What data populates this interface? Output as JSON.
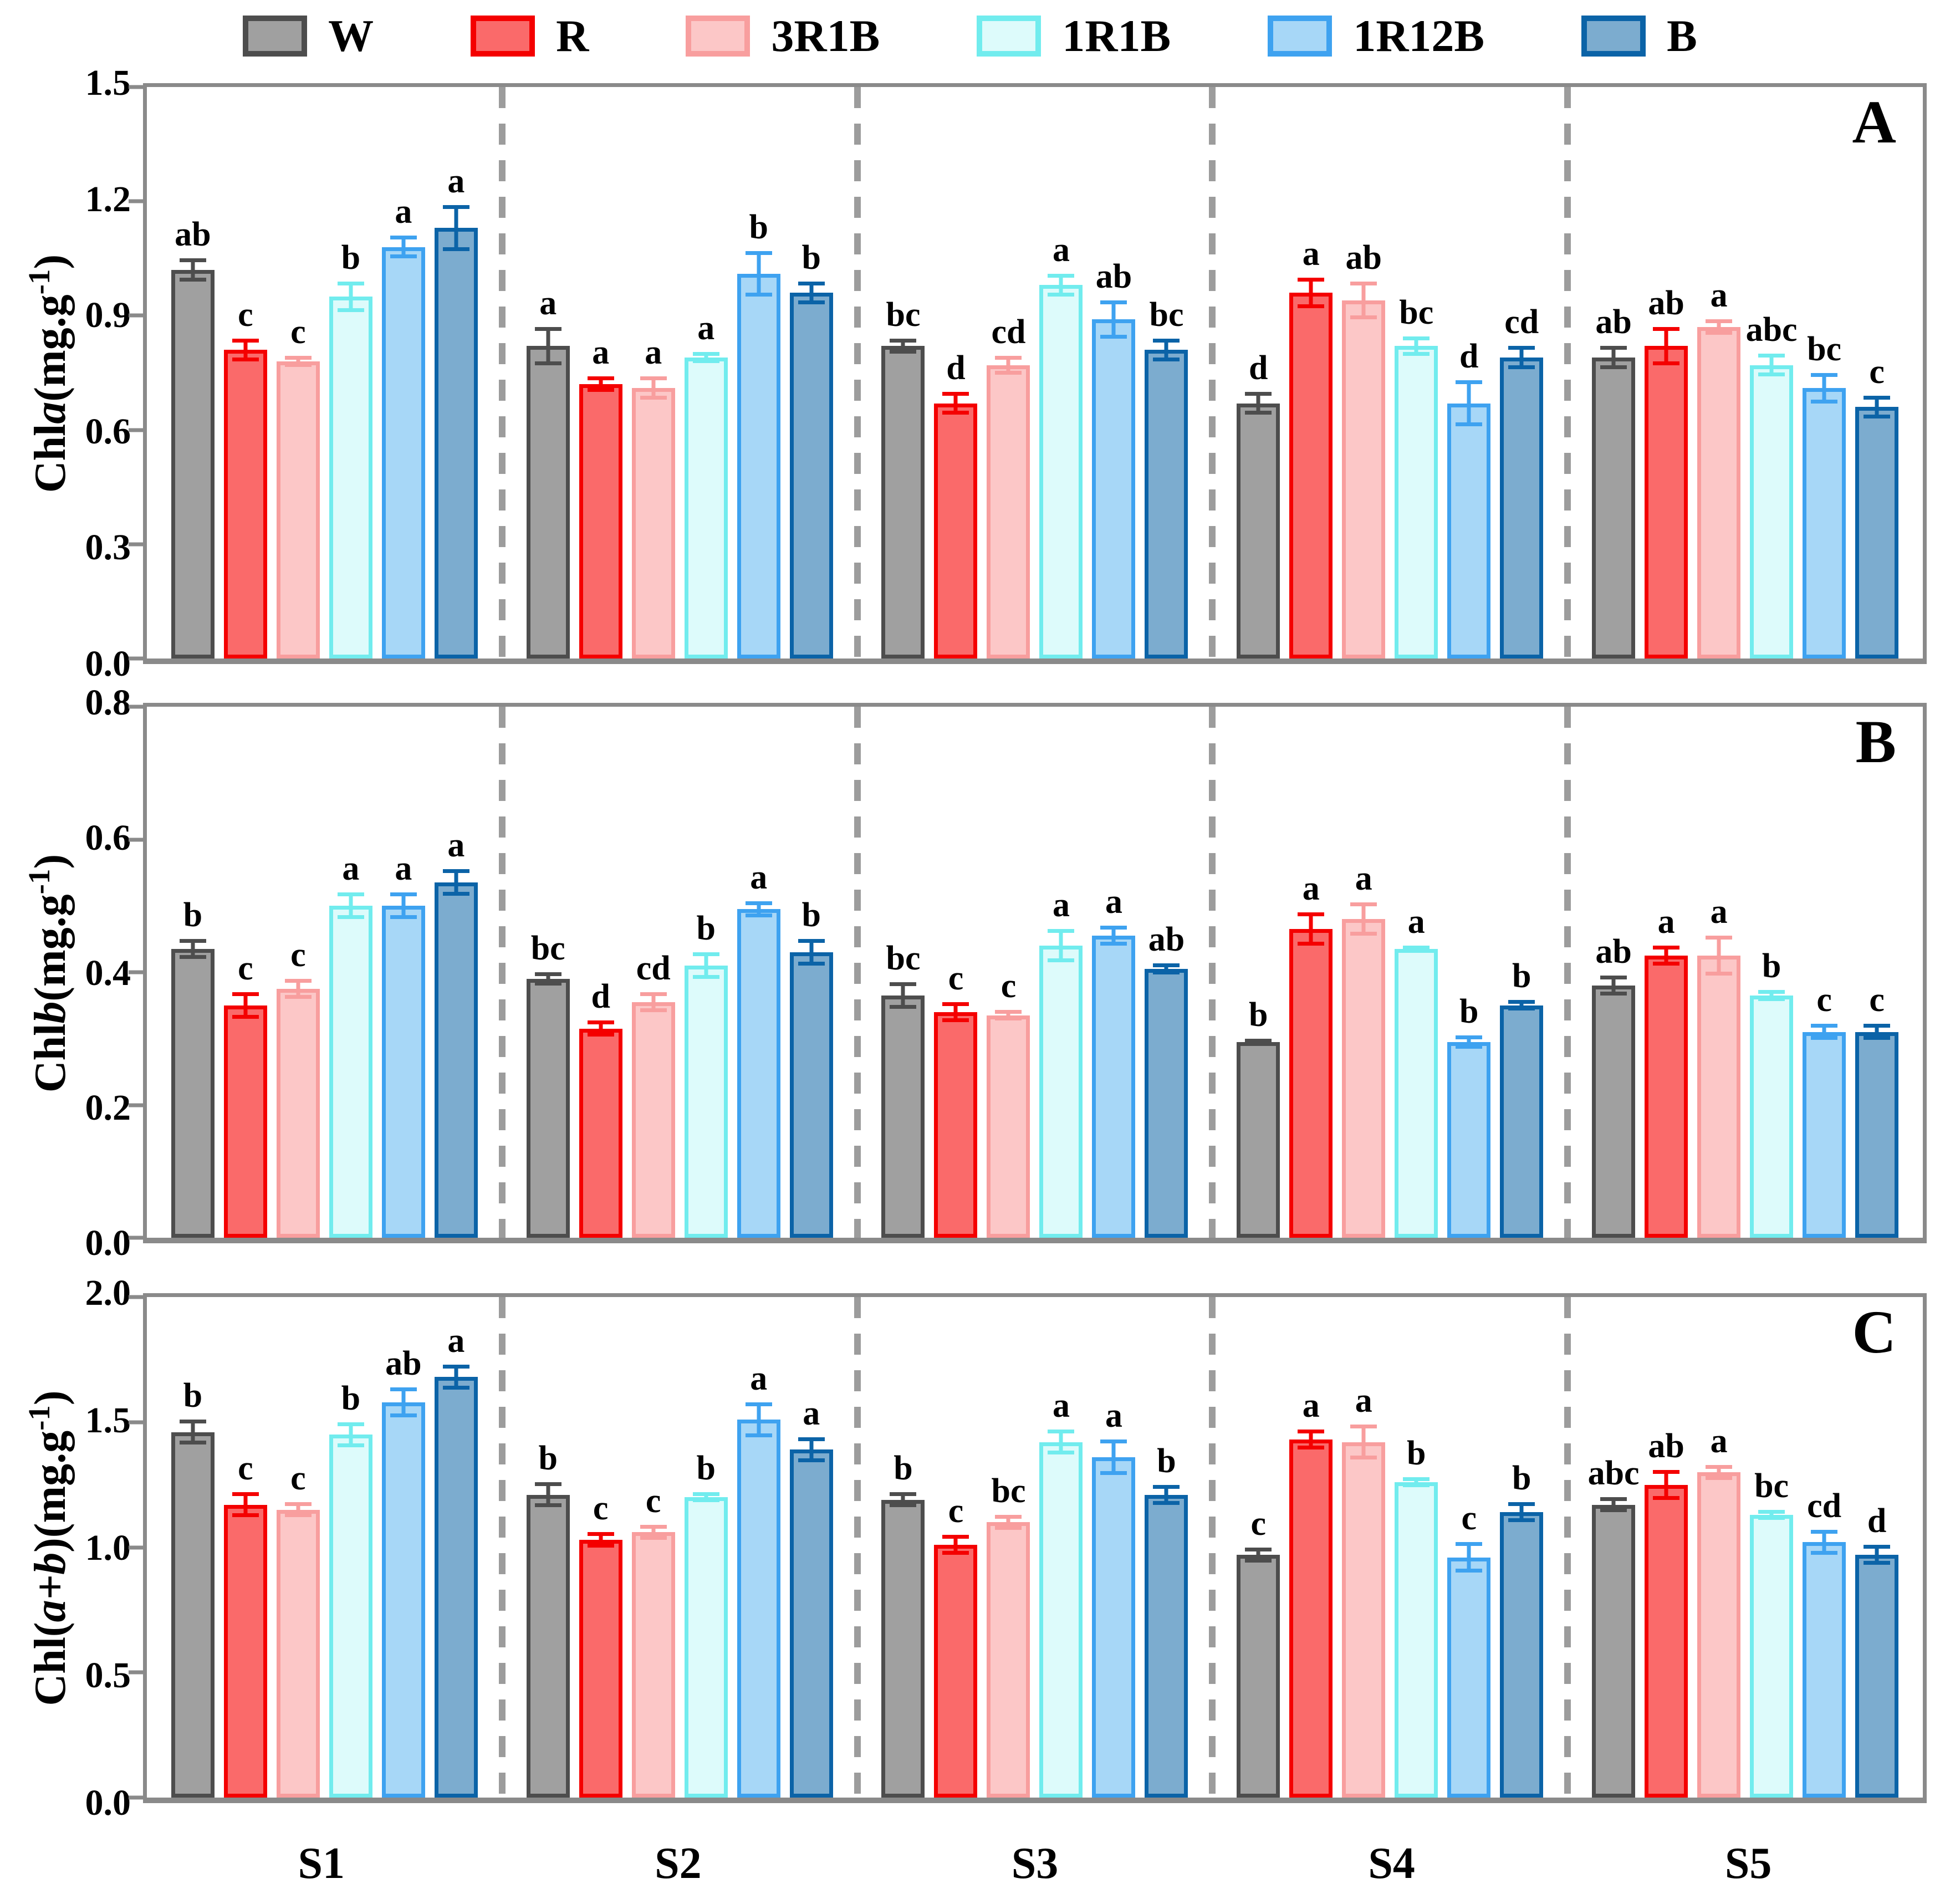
{
  "legend": {
    "items": [
      {
        "label": "W",
        "fill": "#a0a0a0",
        "border": "#4d4d4d"
      },
      {
        "label": "R",
        "fill": "#fa6a6a",
        "border": "#f40000"
      },
      {
        "label": "3R1B",
        "fill": "#fcc7c7",
        "border": "#f89e9e"
      },
      {
        "label": "1R1B",
        "fill": "#ddfbfb",
        "border": "#71ecee"
      },
      {
        "label": "1R12B",
        "fill": "#a7d7f7",
        "border": "#3ea2f0"
      },
      {
        "label": "B",
        "fill": "#7caccf",
        "border": "#0b63a7"
      }
    ]
  },
  "categories": [
    "S1",
    "S2",
    "S3",
    "S4",
    "S5"
  ],
  "colors": {
    "plot_border": "#8a8a8a",
    "separator": "#9c9c9c"
  },
  "chart_data": [
    {
      "type": "bar",
      "panel_label": "A",
      "ylabel": {
        "pre": "Chl",
        "var": "a",
        "unit_open": "(mg.g",
        "sup": "-1",
        "unit_close": ")"
      },
      "ylim": [
        0,
        1.5
      ],
      "yticks": [
        "0.0",
        "0.3",
        "0.6",
        "0.9",
        "1.2",
        "1.5"
      ],
      "grid": false,
      "legend_position": "top",
      "categories": [
        "S1",
        "S2",
        "S3",
        "S4",
        "S5"
      ],
      "series": [
        {
          "name": "W",
          "values": [
            1.02,
            0.82,
            0.82,
            0.67,
            0.79
          ],
          "errors": [
            0.03,
            0.05,
            0.02,
            0.03,
            0.03
          ],
          "letters": [
            "ab",
            "a",
            "bc",
            "d",
            "ab"
          ]
        },
        {
          "name": "R",
          "values": [
            0.81,
            0.72,
            0.67,
            0.96,
            0.82
          ],
          "errors": [
            0.03,
            0.02,
            0.03,
            0.04,
            0.05
          ],
          "letters": [
            "c",
            "a",
            "d",
            "a",
            "ab"
          ]
        },
        {
          "name": "3R1B",
          "values": [
            0.78,
            0.71,
            0.77,
            0.94,
            0.87
          ],
          "errors": [
            0.015,
            0.03,
            0.025,
            0.05,
            0.02
          ],
          "letters": [
            "c",
            "a",
            "cd",
            "ab",
            "a"
          ]
        },
        {
          "name": "1R1B",
          "values": [
            0.95,
            0.79,
            0.98,
            0.82,
            0.77
          ],
          "errors": [
            0.04,
            0.015,
            0.03,
            0.025,
            0.03
          ],
          "letters": [
            "b",
            "a",
            "a",
            "bc",
            "abc"
          ]
        },
        {
          "name": "1R12B",
          "values": [
            1.08,
            1.01,
            0.89,
            0.67,
            0.71
          ],
          "errors": [
            0.03,
            0.06,
            0.05,
            0.06,
            0.04
          ],
          "letters": [
            "a",
            "b",
            "ab",
            "d",
            "bc"
          ]
        },
        {
          "name": "B",
          "values": [
            1.13,
            0.96,
            0.81,
            0.79,
            0.66
          ],
          "errors": [
            0.06,
            0.03,
            0.03,
            0.03,
            0.03
          ],
          "letters": [
            "a",
            "b",
            "bc",
            "cd",
            "c"
          ]
        }
      ]
    },
    {
      "type": "bar",
      "panel_label": "B",
      "ylabel": {
        "pre": "Chl",
        "var": "b",
        "unit_open": "(mg.g",
        "sup": "-1",
        "unit_close": ")"
      },
      "ylim": [
        0,
        0.8
      ],
      "yticks": [
        "0.0",
        "0.2",
        "0.4",
        "0.6",
        "0.8"
      ],
      "grid": false,
      "legend_position": "top",
      "categories": [
        "S1",
        "S2",
        "S3",
        "S4",
        "S5"
      ],
      "series": [
        {
          "name": "W",
          "values": [
            0.435,
            0.39,
            0.365,
            0.295,
            0.38
          ],
          "errors": [
            0.015,
            0.01,
            0.02,
            0.005,
            0.015
          ],
          "letters": [
            "b",
            "bc",
            "bc",
            "b",
            "ab"
          ]
        },
        {
          "name": "R",
          "values": [
            0.35,
            0.315,
            0.34,
            0.465,
            0.425
          ],
          "errors": [
            0.02,
            0.012,
            0.015,
            0.025,
            0.015
          ],
          "letters": [
            "c",
            "d",
            "c",
            "a",
            "a"
          ]
        },
        {
          "name": "3R1B",
          "values": [
            0.375,
            0.355,
            0.335,
            0.48,
            0.425
          ],
          "errors": [
            0.015,
            0.015,
            0.008,
            0.025,
            0.03
          ],
          "letters": [
            "c",
            "cd",
            "c",
            "a",
            "a"
          ]
        },
        {
          "name": "1R1B",
          "values": [
            0.5,
            0.41,
            0.44,
            0.435,
            0.365
          ],
          "errors": [
            0.02,
            0.02,
            0.025,
            0.005,
            0.008
          ],
          "letters": [
            "a",
            "b",
            "a",
            "a",
            "b"
          ]
        },
        {
          "name": "1R12B",
          "values": [
            0.5,
            0.495,
            0.455,
            0.295,
            0.31
          ],
          "errors": [
            0.02,
            0.012,
            0.015,
            0.01,
            0.012
          ],
          "letters": [
            "a",
            "a",
            "a",
            "b",
            "c"
          ]
        },
        {
          "name": "B",
          "values": [
            0.535,
            0.43,
            0.405,
            0.35,
            0.31
          ],
          "errors": [
            0.02,
            0.02,
            0.008,
            0.008,
            0.012
          ],
          "letters": [
            "a",
            "b",
            "ab",
            "b",
            "c"
          ]
        }
      ]
    },
    {
      "type": "bar",
      "panel_label": "C",
      "ylabel": {
        "pre": "Chl(",
        "var": "a+b",
        "unit_open": ")(mg.g",
        "sup": "-1",
        "unit_close": ")"
      },
      "ylim": [
        0,
        2.0
      ],
      "yticks": [
        "0.0",
        "0.5",
        "1.0",
        "1.5",
        "2.0"
      ],
      "grid": false,
      "legend_position": "top",
      "categories": [
        "S1",
        "S2",
        "S3",
        "S4",
        "S5"
      ],
      "series": [
        {
          "name": "W",
          "values": [
            1.46,
            1.21,
            1.19,
            0.97,
            1.17
          ],
          "errors": [
            0.05,
            0.05,
            0.03,
            0.03,
            0.03
          ],
          "letters": [
            "b",
            "b",
            "b",
            "c",
            "abc"
          ]
        },
        {
          "name": "R",
          "values": [
            1.17,
            1.03,
            1.01,
            1.43,
            1.25
          ],
          "errors": [
            0.05,
            0.03,
            0.04,
            0.04,
            0.06
          ],
          "letters": [
            "c",
            "c",
            "c",
            "a",
            "ab"
          ]
        },
        {
          "name": "3R1B",
          "values": [
            1.15,
            1.06,
            1.1,
            1.42,
            1.3
          ],
          "errors": [
            0.03,
            0.03,
            0.03,
            0.07,
            0.03
          ],
          "letters": [
            "c",
            "c",
            "bc",
            "a",
            "a"
          ]
        },
        {
          "name": "1R1B",
          "values": [
            1.45,
            1.2,
            1.42,
            1.26,
            1.13
          ],
          "errors": [
            0.05,
            0.02,
            0.05,
            0.02,
            0.02
          ],
          "letters": [
            "b",
            "b",
            "a",
            "b",
            "bc"
          ]
        },
        {
          "name": "1R12B",
          "values": [
            1.58,
            1.51,
            1.36,
            0.96,
            1.02
          ],
          "errors": [
            0.06,
            0.07,
            0.07,
            0.06,
            0.05
          ],
          "letters": [
            "ab",
            "a",
            "a",
            "c",
            "cd"
          ]
        },
        {
          "name": "B",
          "values": [
            1.68,
            1.39,
            1.21,
            1.14,
            0.97
          ],
          "errors": [
            0.05,
            0.05,
            0.04,
            0.04,
            0.04
          ],
          "letters": [
            "a",
            "a",
            "b",
            "b",
            "d"
          ]
        }
      ]
    }
  ]
}
